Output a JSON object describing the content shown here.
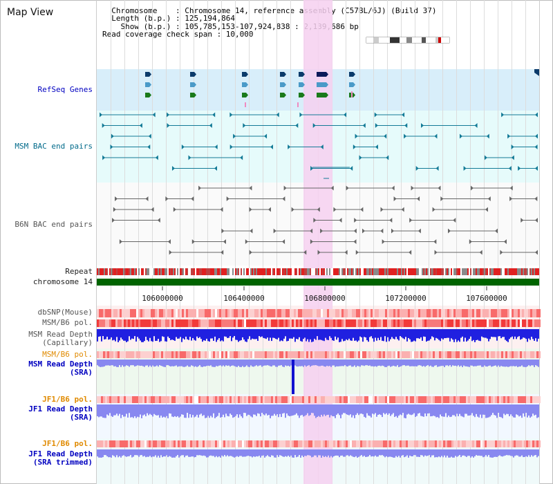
{
  "title": "Map View",
  "info": {
    "chromosome": "  Chromosome    : Chromosome 14, reference assembly (C57BL/6J) (Build 37)",
    "length": "  Length (b.p.) : 125,194,864",
    "show": "    Show (b.p.) : 105,785,153-107,924,838 : 2,139,686 bp",
    "span": "Read coverage check span : 10,000"
  },
  "tracks": {
    "refseq": "RefSeq Genes",
    "msm_bac": "MSM BAC end pairs",
    "b6n_bac": "B6N BAC end pairs",
    "repeat": "Repeat",
    "chromosome": "chromosome 14",
    "dbsnp": "dbSNP(Mouse)",
    "msm_pol": "MSM/B6 pol.",
    "msm_depth_cap_1": "MSM Read Depth",
    "msm_depth_cap_2": "(Capillary)",
    "msm_pol_2": "MSM/B6 pol.",
    "msm_depth_sra_1": "MSM Read Depth",
    "msm_depth_sra_2": "(SRA)",
    "jf1_pol": "JF1/B6 pol.",
    "jf1_depth_sra_1": "JF1 Read Depth",
    "jf1_depth_sra_2": "(SRA)",
    "jf1_pol_2": "JF1/B6 pol.",
    "jf1_depth_trim_1": "JF1 Read Depth",
    "jf1_depth_trim_2": "(SRA trimmed)"
  },
  "axis_ticks": [
    "106000000",
    "106400000",
    "106800000",
    "107200000",
    "107600000"
  ],
  "colors": {
    "highlight": "#f6d0f0",
    "refseq_bg": "#d8eefa",
    "bac_bg": "#e6fbfb",
    "repeat_red": "#e02020",
    "chrom_green": "#006400",
    "pol_red": "#f04040",
    "depth_blue": "#2020e0",
    "depth_lav": "#8888f0"
  }
}
